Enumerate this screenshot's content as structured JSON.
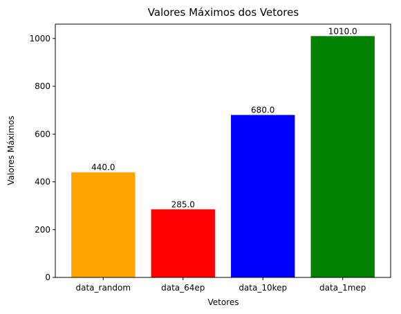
{
  "chart_data": {
    "type": "bar",
    "title": "Valores Máximos dos Vetores",
    "xlabel": "Vetores",
    "ylabel": "Valores Máximos",
    "categories": [
      "data_random",
      "data_64ep",
      "data_10kep",
      "data_1mep"
    ],
    "values": [
      440.0,
      285.0,
      680.0,
      1010.0
    ],
    "data_labels": [
      "440.0",
      "285.0",
      "680.0",
      "1010.0"
    ],
    "colors": [
      "#ffa500",
      "#ff0000",
      "#0000ff",
      "#008000"
    ],
    "ylim": [
      0,
      1060
    ],
    "yticks": [
      0,
      200,
      400,
      600,
      800,
      1000
    ],
    "grid": false,
    "legend": "none"
  }
}
